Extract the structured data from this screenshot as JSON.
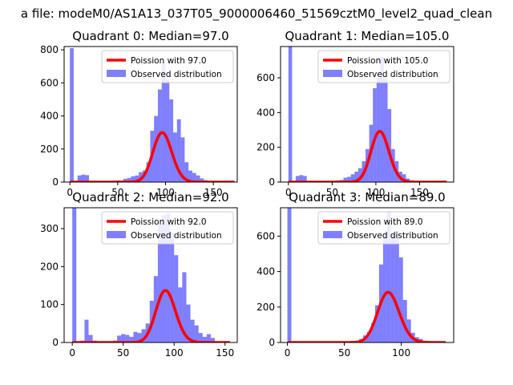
{
  "suptitle": "a file: modeM0/AS1A13_037T05_9000006460_51569cztM0_level2_quad_clean",
  "colors": {
    "hist": "#0000ff",
    "hist_alpha": 0.5,
    "poisson": "#ff0000",
    "axes": "#000000",
    "background": "#ffffff"
  },
  "chart_data": [
    {
      "type": "bar",
      "title": "Quadrant 0: Median=97.0",
      "median": 97.0,
      "xlim": [
        -6,
        175
      ],
      "ylim": [
        0,
        820
      ],
      "xticks": [
        0,
        50,
        100,
        150
      ],
      "yticks": [
        0,
        200,
        400,
        600,
        800
      ],
      "bin_width": 4,
      "legend": {
        "position": "top-right",
        "entries": [
          "Poission with 97.0",
          "Observed distribution"
        ]
      },
      "series": [
        {
          "name": "Observed distribution",
          "type": "histogram",
          "bins": [
            [
              0,
              4,
              810
            ],
            [
              8,
              12,
              40
            ],
            [
              12,
              16,
              45
            ],
            [
              16,
              20,
              42
            ],
            [
              20,
              24,
              0
            ],
            [
              24,
              28,
              5
            ],
            [
              28,
              32,
              3
            ],
            [
              40,
              44,
              5
            ],
            [
              44,
              48,
              8
            ],
            [
              48,
              52,
              10
            ],
            [
              52,
              56,
              10
            ],
            [
              56,
              60,
              20
            ],
            [
              60,
              64,
              25
            ],
            [
              64,
              68,
              35
            ],
            [
              68,
              72,
              40
            ],
            [
              72,
              76,
              60
            ],
            [
              76,
              80,
              70
            ],
            [
              80,
              84,
              120
            ],
            [
              84,
              88,
              310
            ],
            [
              88,
              92,
              400
            ],
            [
              92,
              96,
              560
            ],
            [
              96,
              100,
              720
            ],
            [
              100,
              104,
              620
            ],
            [
              104,
              108,
              500
            ],
            [
              108,
              112,
              300
            ],
            [
              112,
              116,
              380
            ],
            [
              116,
              120,
              270
            ],
            [
              120,
              124,
              120
            ],
            [
              124,
              128,
              70
            ],
            [
              128,
              132,
              55
            ],
            [
              132,
              136,
              40
            ],
            [
              136,
              140,
              22
            ],
            [
              140,
              144,
              12
            ],
            [
              144,
              148,
              7
            ],
            [
              148,
              152,
              4
            ]
          ]
        },
        {
          "name": "Poission with 97.0",
          "type": "poisson_curve",
          "lambda": 97,
          "scale": 7400,
          "x_range": [
            0,
            172
          ]
        }
      ]
    },
    {
      "type": "bar",
      "title": "Quadrant 1: Median=105.0",
      "median": 105.0,
      "xlim": [
        -9,
        189
      ],
      "ylim": [
        0,
        780
      ],
      "xticks": [
        0,
        50,
        100,
        150
      ],
      "yticks": [
        0,
        200,
        400,
        600
      ],
      "bin_width": 4.2,
      "legend": {
        "position": "top-right",
        "entries": [
          "Poission with 105.0",
          "Observed distribution"
        ]
      },
      "series": [
        {
          "name": "Observed distribution",
          "type": "histogram",
          "bins": [
            [
              0,
              4.2,
              780
            ],
            [
              8.4,
              12.6,
              35
            ],
            [
              12.6,
              16.8,
              40
            ],
            [
              16.8,
              21,
              35
            ],
            [
              50.4,
              54.6,
              5
            ],
            [
              54.6,
              58.8,
              10
            ],
            [
              58.8,
              63,
              12
            ],
            [
              63,
              67.2,
              25
            ],
            [
              67.2,
              71.4,
              30
            ],
            [
              71.4,
              75.6,
              45
            ],
            [
              75.6,
              79.8,
              60
            ],
            [
              79.8,
              84,
              80
            ],
            [
              84,
              88.2,
              120
            ],
            [
              88.2,
              92.4,
              190
            ],
            [
              92.4,
              96.6,
              330
            ],
            [
              96.6,
              100.8,
              540
            ],
            [
              100.8,
              105,
              600
            ],
            [
              105,
              109.2,
              720
            ],
            [
              109.2,
              113.4,
              600
            ],
            [
              113.4,
              117.6,
              420
            ],
            [
              117.6,
              121.8,
              190
            ],
            [
              121.8,
              126,
              120
            ],
            [
              126,
              130.2,
              60
            ],
            [
              130.2,
              134.4,
              45
            ],
            [
              134.4,
              138.6,
              20
            ],
            [
              138.6,
              142.8,
              10
            ],
            [
              142.8,
              147,
              6
            ]
          ]
        },
        {
          "name": "Poission with 105.0",
          "type": "poisson_curve",
          "lambda": 105,
          "scale": 7500,
          "x_range": [
            0,
            181
          ]
        }
      ]
    },
    {
      "type": "bar",
      "title": "Quadrant 2: Median=92.0",
      "median": 92.0,
      "xlim": [
        -8,
        162
      ],
      "ylim": [
        0,
        355
      ],
      "xticks": [
        0,
        50,
        100,
        150
      ],
      "yticks": [
        0,
        100,
        200,
        300
      ],
      "bin_width": 4,
      "legend": {
        "position": "top-right",
        "entries": [
          "Poission with 92.0",
          "Observed distribution"
        ]
      },
      "series": [
        {
          "name": "Observed distribution",
          "type": "histogram",
          "bins": [
            [
              0,
              4,
              355
            ],
            [
              8,
              12,
              5
            ],
            [
              12,
              16,
              60
            ],
            [
              16,
              20,
              20
            ],
            [
              20,
              24,
              5
            ],
            [
              24,
              28,
              3
            ],
            [
              28,
              32,
              2
            ],
            [
              36,
              40,
              3
            ],
            [
              40,
              44,
              5
            ],
            [
              44,
              48,
              18
            ],
            [
              48,
              52,
              22
            ],
            [
              52,
              56,
              20
            ],
            [
              56,
              60,
              15
            ],
            [
              60,
              64,
              28
            ],
            [
              64,
              68,
              25
            ],
            [
              68,
              72,
              35
            ],
            [
              72,
              76,
              50
            ],
            [
              76,
              80,
              110
            ],
            [
              80,
              84,
              175
            ],
            [
              84,
              88,
              310
            ],
            [
              88,
              92,
              335
            ],
            [
              92,
              96,
              340
            ],
            [
              96,
              100,
              290
            ],
            [
              100,
              104,
              230
            ],
            [
              104,
              108,
              145
            ],
            [
              108,
              112,
              185
            ],
            [
              112,
              116,
              100
            ],
            [
              116,
              120,
              60
            ],
            [
              120,
              124,
              45
            ],
            [
              124,
              128,
              25
            ],
            [
              128,
              132,
              15
            ],
            [
              132,
              136,
              22
            ],
            [
              136,
              140,
              12
            ],
            [
              140,
              144,
              3
            ],
            [
              144,
              148,
              2
            ]
          ]
        },
        {
          "name": "Poission with 92.0",
          "type": "poisson_curve",
          "lambda": 92,
          "scale": 3300,
          "x_range": [
            0,
            155
          ]
        }
      ]
    },
    {
      "type": "bar",
      "title": "Quadrant 3: Median=89.0",
      "median": 89.0,
      "xlim": [
        -6,
        146
      ],
      "ylim": [
        0,
        760
      ],
      "xticks": [
        0,
        50,
        100
      ],
      "yticks": [
        0,
        200,
        400,
        600
      ],
      "bin_width": 3.5,
      "legend": {
        "position": "top-right",
        "entries": [
          "Poission with 89.0",
          "Observed distribution"
        ]
      },
      "series": [
        {
          "name": "Observed distribution",
          "type": "histogram",
          "bins": [
            [
              0,
              3.5,
              760
            ],
            [
              52.5,
              56,
              5
            ],
            [
              56,
              59.5,
              8
            ],
            [
              59.5,
              63,
              10
            ],
            [
              63,
              66.5,
              20
            ],
            [
              66.5,
              70,
              40
            ],
            [
              70,
              73.5,
              60
            ],
            [
              73.5,
              77,
              110
            ],
            [
              77,
              80.5,
              210
            ],
            [
              80.5,
              84,
              440
            ],
            [
              84,
              87.5,
              620
            ],
            [
              87.5,
              91,
              740
            ],
            [
              91,
              94.5,
              610
            ],
            [
              94.5,
              98,
              630
            ],
            [
              98,
              101.5,
              480
            ],
            [
              101.5,
              105,
              240
            ],
            [
              105,
              108.5,
              130
            ],
            [
              108.5,
              112,
              55
            ],
            [
              112,
              115.5,
              30
            ],
            [
              115.5,
              119,
              20
            ],
            [
              119,
              122.5,
              10
            ],
            [
              122.5,
              126,
              6
            ]
          ]
        },
        {
          "name": "Poission with 89.0",
          "type": "poisson_curve",
          "lambda": 89,
          "scale": 6700,
          "x_range": [
            0,
            139
          ]
        }
      ]
    }
  ]
}
